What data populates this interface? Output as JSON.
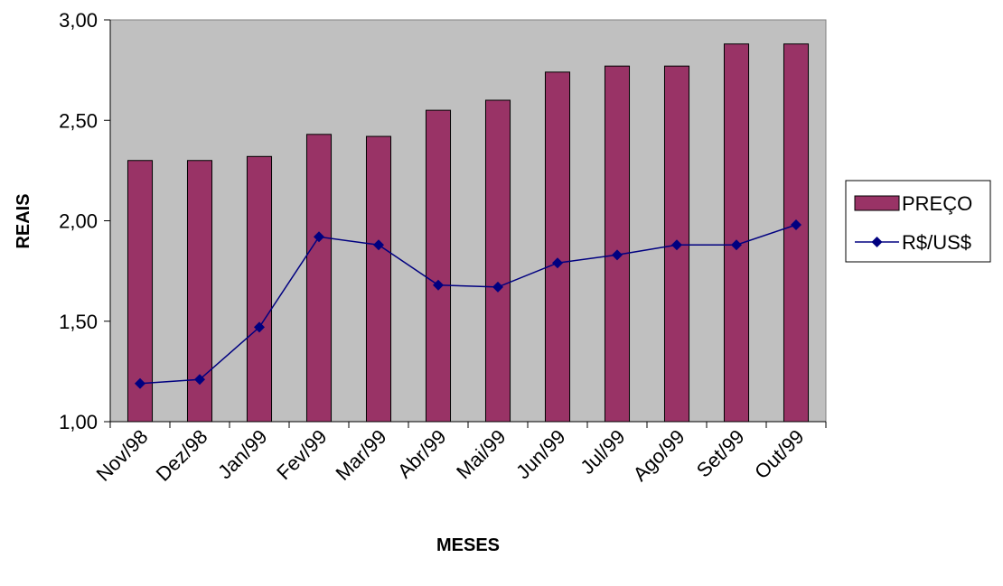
{
  "chart_data": {
    "type": "bar",
    "xlabel": "MESES",
    "ylabel": "REAIS",
    "ylim": [
      1.0,
      3.0
    ],
    "yticks": [
      "1,00",
      "1,50",
      "2,00",
      "2,50",
      "3,00"
    ],
    "categories": [
      "Nov/98",
      "Dez/98",
      "Jan/99",
      "Fev/99",
      "Mar/99",
      "Abr/99",
      "Mai/99",
      "Jun/99",
      "Jul/99",
      "Ago/99",
      "Set/99",
      "Out/99"
    ],
    "series": [
      {
        "name": "PREÇO",
        "type": "bar",
        "color": "#993366",
        "values": [
          2.3,
          2.3,
          2.32,
          2.43,
          2.42,
          2.55,
          2.6,
          2.74,
          2.77,
          2.77,
          2.88,
          2.88
        ]
      },
      {
        "name": "R$/US$",
        "type": "line",
        "color": "#000080",
        "values": [
          1.19,
          1.21,
          1.47,
          1.92,
          1.88,
          1.68,
          1.67,
          1.79,
          1.83,
          1.88,
          1.88,
          1.98
        ]
      }
    ],
    "plot_background": "#c0c0c0",
    "grid": false,
    "legend": "right"
  }
}
